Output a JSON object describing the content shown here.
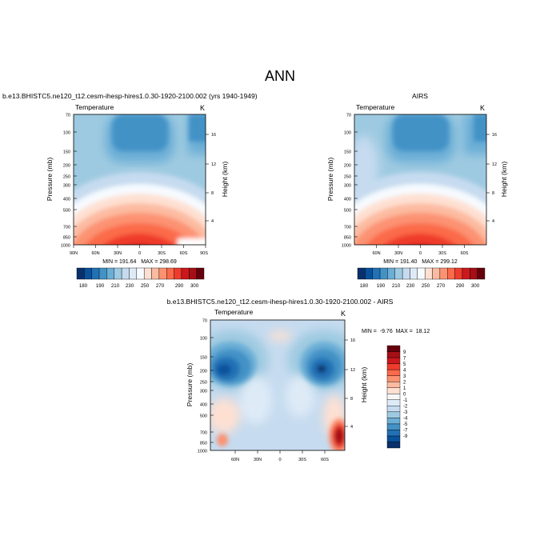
{
  "page_title": "ANN",
  "palettes": {
    "temperature": [
      "#08306b",
      "#08519c",
      "#2171b5",
      "#4292c6",
      "#6baed6",
      "#9ecae1",
      "#c6dbef",
      "#deebf7",
      "#f7fbff",
      "#fee0d2",
      "#fcbba1",
      "#fc9272",
      "#fb6a4a",
      "#ef3b2c",
      "#cb181d",
      "#a50f15",
      "#67000d"
    ],
    "difference": [
      "#08306b",
      "#08519c",
      "#2171b5",
      "#4292c6",
      "#6baed6",
      "#9ecae1",
      "#c6dbef",
      "#deebf7",
      "#f7f7f7",
      "#fee0d2",
      "#fcbba1",
      "#fc9272",
      "#fb6a4a",
      "#ef3b2c",
      "#cb181d",
      "#a50f15",
      "#67000d"
    ]
  },
  "chart_data": [
    {
      "type": "heatmap",
      "title": "b.e13.BHISTC5.ne120_t12.cesm-ihesp-hires1.0.30-1920-2100.002 (yrs 1940-1949)",
      "subtitle": "Temperature",
      "units": "K",
      "ylabel": "Pressure (mb)",
      "ylabel_right": "Height (km)",
      "x_ticks": [
        "90N",
        "60N",
        "30N",
        "0",
        "30S",
        "60S",
        "90S"
      ],
      "y_ticks": [
        "70",
        "100",
        "150",
        "200",
        "250",
        "300",
        "400",
        "500",
        "700",
        "850",
        "1000"
      ],
      "right_ticks": [
        "16",
        "12",
        "8",
        "4"
      ],
      "stats": "MIN = 191.64   MAX = 298.69",
      "colorbar_labels": [
        "180",
        "190",
        "210",
        "230",
        "250",
        "270",
        "290",
        "300"
      ],
      "min": 191.64,
      "max": 298.69
    },
    {
      "type": "heatmap",
      "title": "AIRS",
      "subtitle": "Temperature",
      "units": "K",
      "ylabel": "Pressure (mb)",
      "ylabel_right": "Height (km)",
      "x_ticks": [
        "60N",
        "30N",
        "0",
        "30S",
        "60S"
      ],
      "y_ticks": [
        "70",
        "100",
        "150",
        "200",
        "250",
        "300",
        "400",
        "500",
        "700",
        "850",
        "1000"
      ],
      "right_ticks": [
        "16",
        "12",
        "8",
        "4"
      ],
      "stats": "MIN = 191.40   MAX = 299.12",
      "colorbar_labels": [
        "180",
        "190",
        "210",
        "230",
        "250",
        "270",
        "290",
        "300"
      ],
      "min": 191.4,
      "max": 299.12
    },
    {
      "type": "heatmap",
      "title": "b.e13.BHISTC5.ne120_t12.cesm-ihesp-hires1.0.30-1920-2100.002 - AIRS",
      "subtitle": "Temperature",
      "units": "K",
      "ylabel": "Pressure (mb)",
      "ylabel_right": "Height (km)",
      "x_ticks": [
        "60N",
        "30N",
        "0",
        "30S",
        "60S"
      ],
      "y_ticks": [
        "70",
        "100",
        "150",
        "200",
        "250",
        "300",
        "400",
        "500",
        "700",
        "850",
        "1000"
      ],
      "right_ticks": [
        "16",
        "12",
        "8",
        "4"
      ],
      "stats": "MIN =  -9.76  MAX =  18.12",
      "colorbar_labels": [
        "9",
        "7",
        "5",
        "4",
        "3",
        "2",
        "1",
        "0",
        "-1",
        "-2",
        "-3",
        "-4",
        "-5",
        "-7",
        "-9"
      ],
      "min": -9.76,
      "max": 18.12
    }
  ]
}
